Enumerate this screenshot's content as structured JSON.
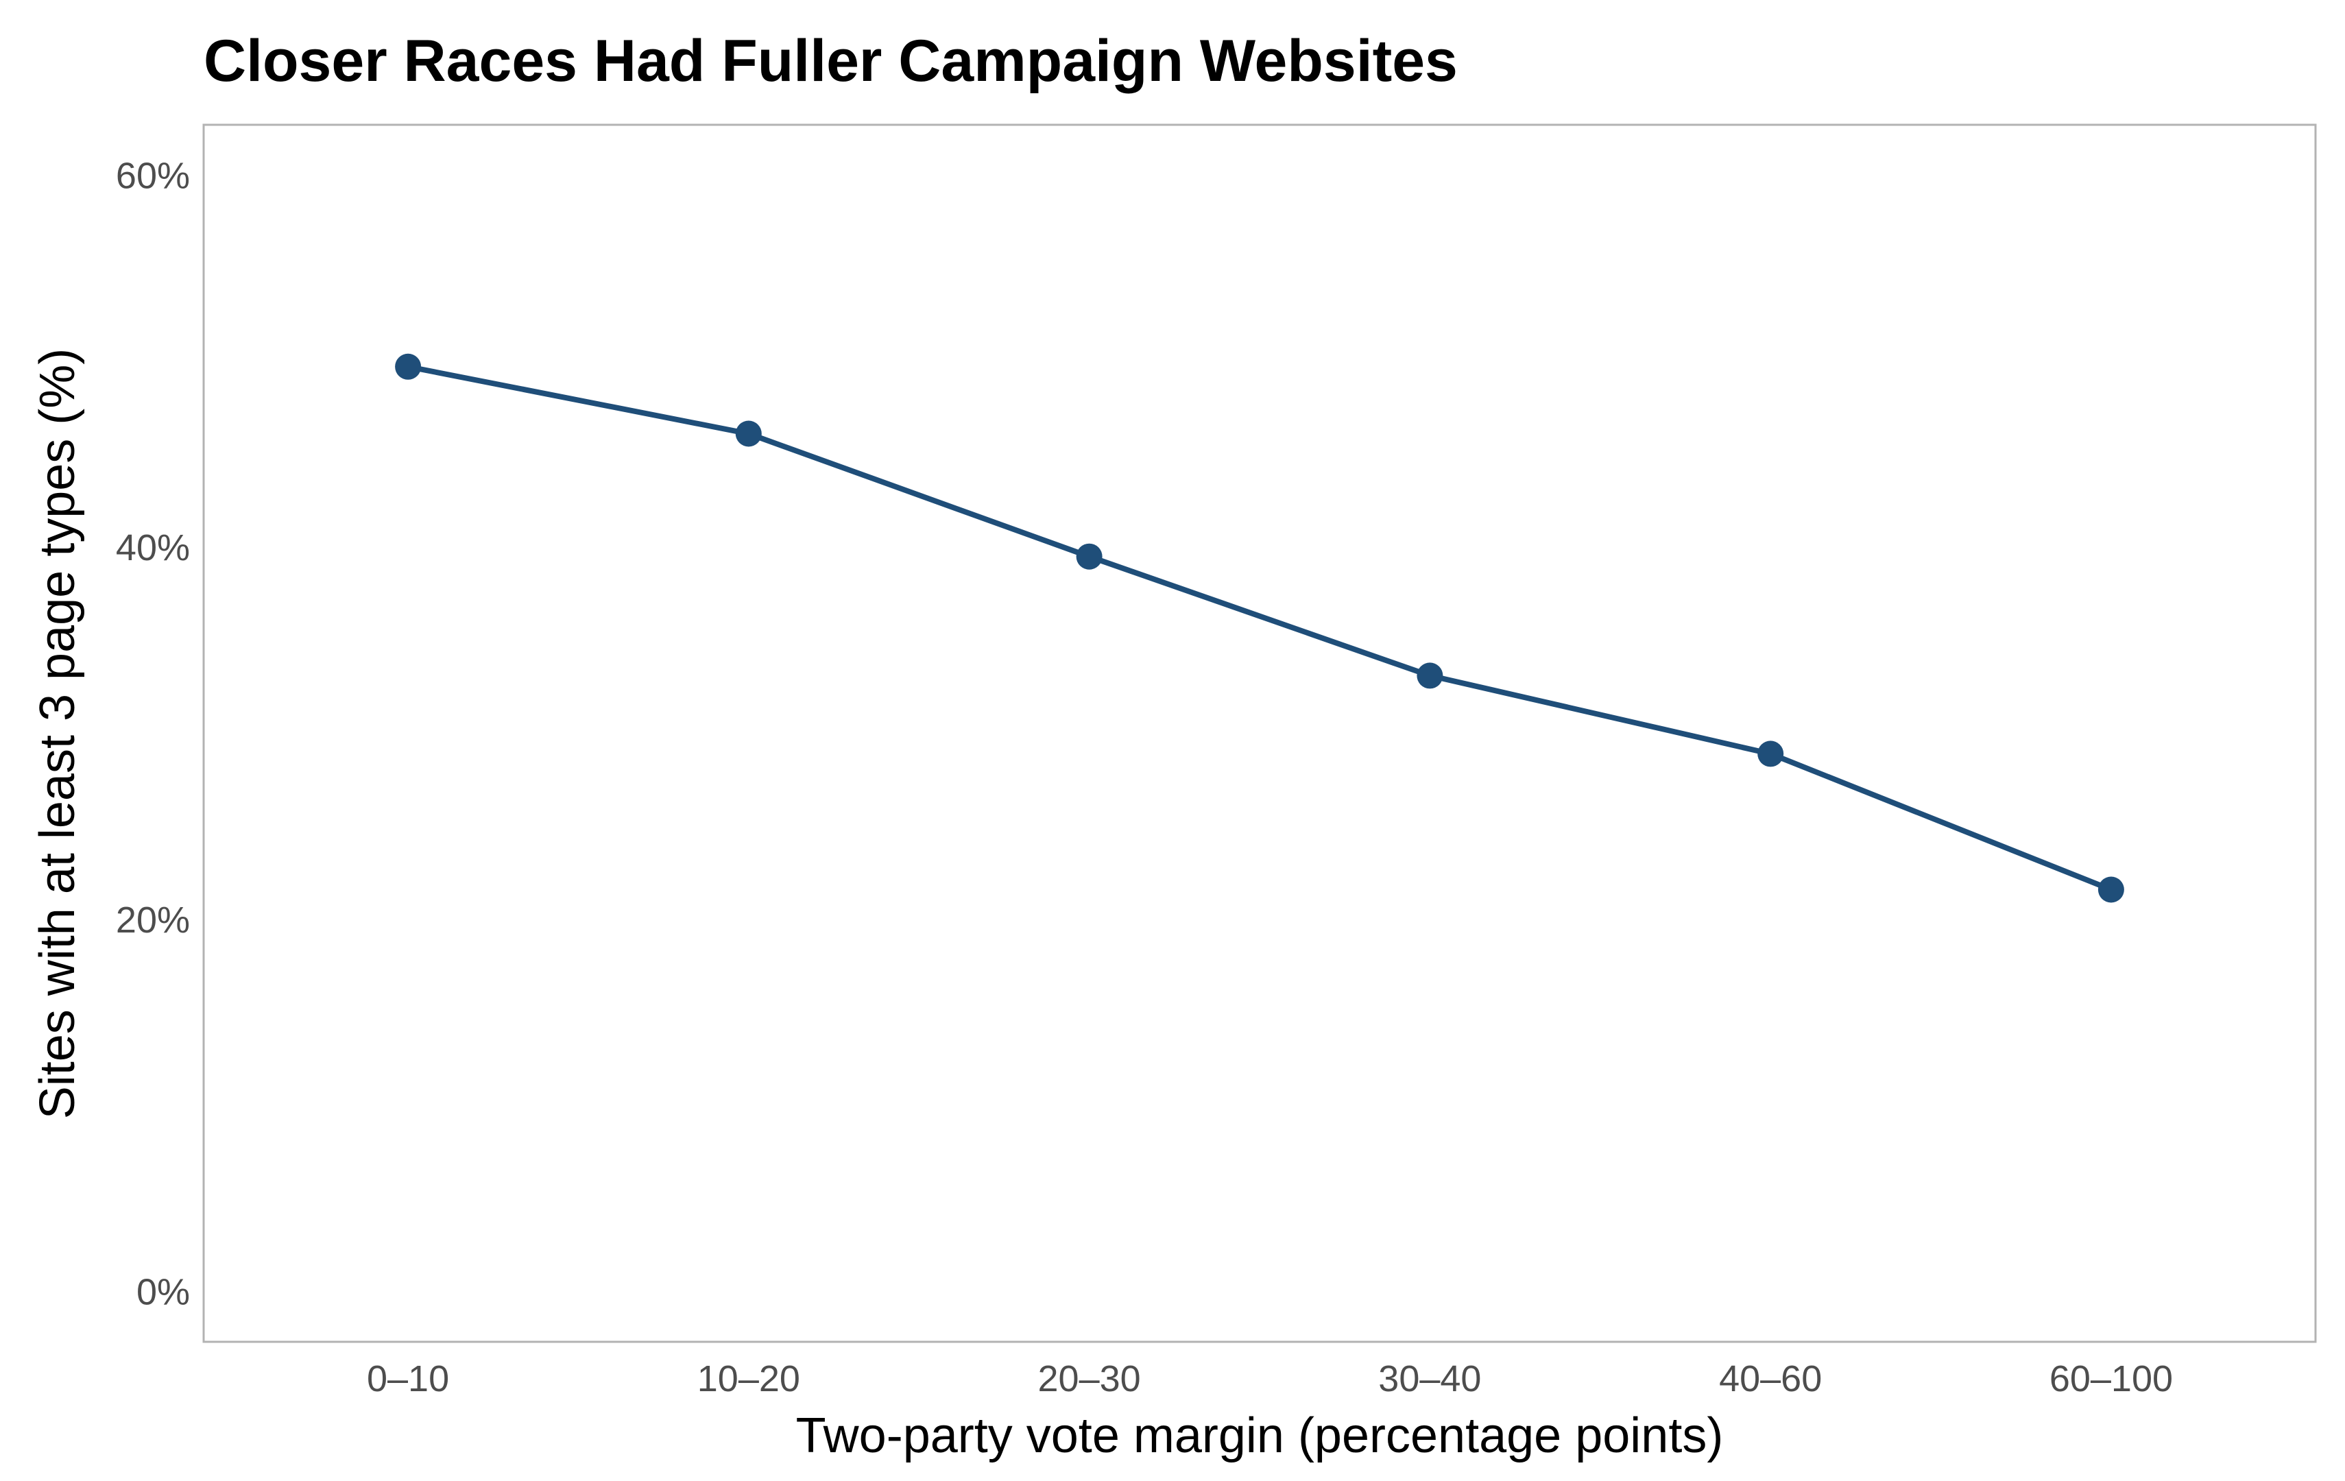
{
  "chart_data": {
    "type": "line",
    "title": "Closer Races Had Fuller Campaign Websites",
    "xlabel": "Two-party vote margin (percentage points)",
    "ylabel": "Sites with at least 3 page types (%)",
    "categories": [
      "0–10",
      "10–20",
      "20–30",
      "30–40",
      "40–60",
      "60–100"
    ],
    "series": [
      {
        "values": [
          49.7,
          46.1,
          39.5,
          33.1,
          28.9,
          21.6
        ]
      }
    ],
    "ylim": [
      -2.7,
      62.7
    ],
    "yticks": [
      0,
      20,
      40,
      60
    ],
    "ytick_labels": [
      "0%",
      "20%",
      "40%",
      "60%"
    ],
    "grid": false,
    "legend": "none",
    "colors": {
      "line": "#1f4e79",
      "frame": "#b3b3b3",
      "tick_text": "#4d4d4d"
    }
  }
}
